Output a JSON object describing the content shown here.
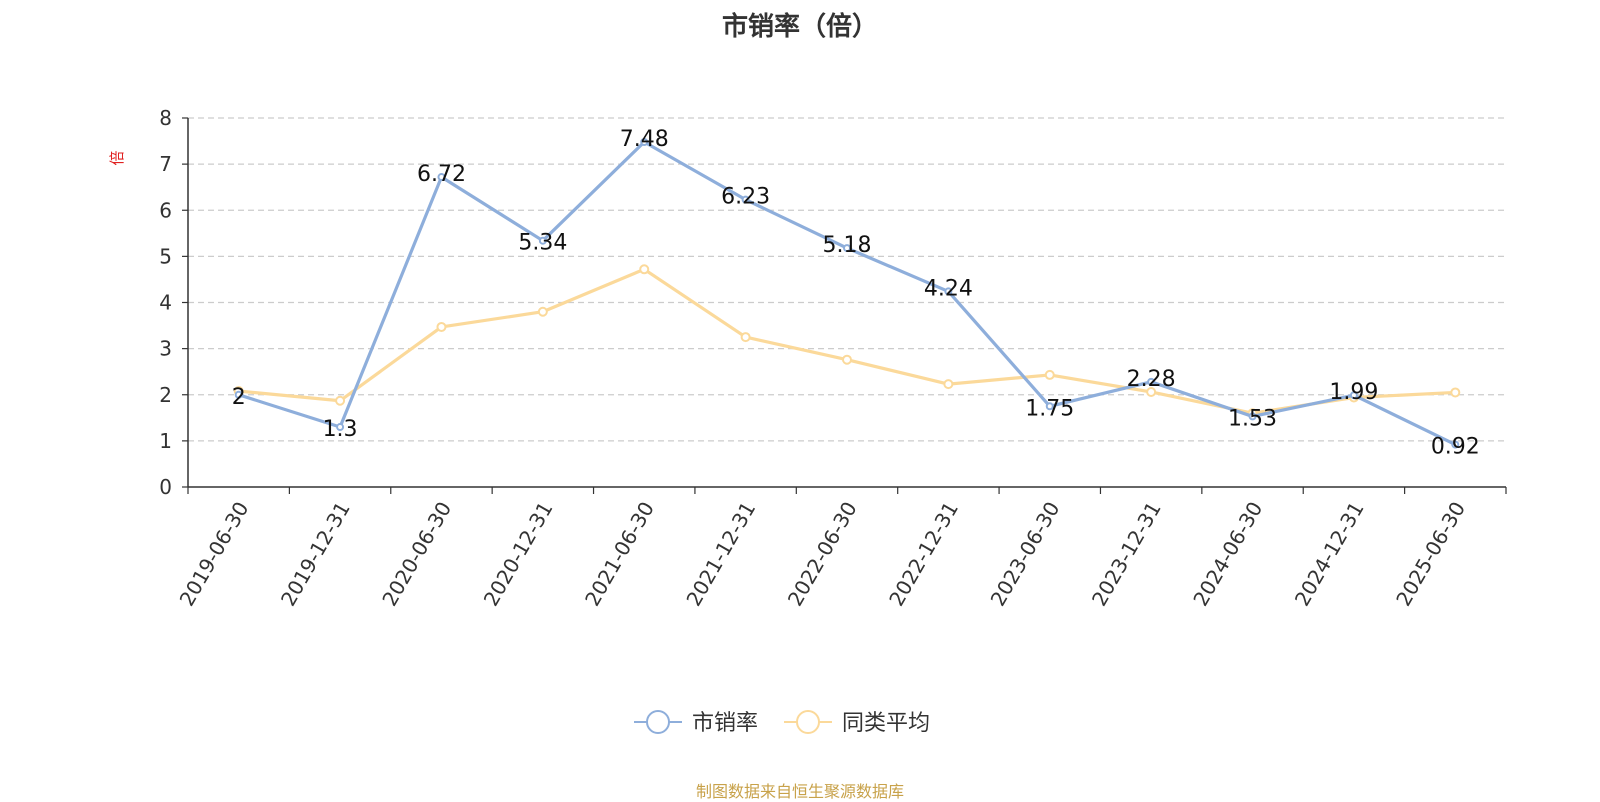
{
  "footer_text": "制图数据来自恒生聚源数据库",
  "chart_data": {
    "type": "line",
    "title": "市销率（倍）",
    "ylabel": "倍",
    "xlabel": "",
    "ylim": [
      0,
      8
    ],
    "yticks": [
      0,
      1,
      2,
      3,
      4,
      5,
      6,
      7,
      8
    ],
    "grid": true,
    "legend_position": "bottom-center",
    "categories": [
      "2019-06-30",
      "2019-12-31",
      "2020-06-30",
      "2020-12-31",
      "2021-06-30",
      "2021-12-31",
      "2022-06-30",
      "2022-12-31",
      "2023-06-30",
      "2023-12-31",
      "2024-06-30",
      "2024-12-31",
      "2025-06-30"
    ],
    "series": [
      {
        "name": "市销率",
        "color": "#8eaedb",
        "values": [
          2,
          1.3,
          6.72,
          5.34,
          7.48,
          6.23,
          5.18,
          4.24,
          1.75,
          2.28,
          1.53,
          1.99,
          0.92
        ],
        "data_labels": [
          "2",
          "1.3",
          "6.72",
          "5.34",
          "7.48",
          "6.23",
          "5.18",
          "4.24",
          "1.75",
          "2.28",
          "1.53",
          "1.99",
          "0.92"
        ]
      },
      {
        "name": "同类平均",
        "color": "#fbd99a",
        "values": [
          2.08,
          1.87,
          3.47,
          3.8,
          4.72,
          3.25,
          2.76,
          2.23,
          2.43,
          2.06,
          1.6,
          1.94,
          2.05
        ]
      }
    ]
  }
}
